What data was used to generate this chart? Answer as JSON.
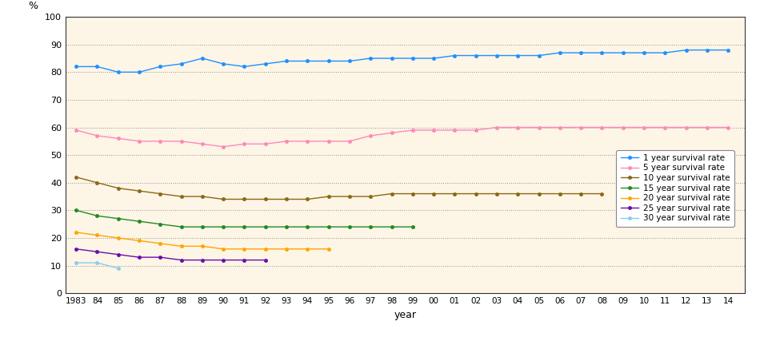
{
  "years": [
    1983,
    1984,
    1985,
    1986,
    1987,
    1988,
    1989,
    1990,
    1991,
    1992,
    1993,
    1994,
    1995,
    1996,
    1997,
    1998,
    1999,
    2000,
    2001,
    2002,
    2003,
    2004,
    2005,
    2006,
    2007,
    2008,
    2009,
    2010,
    2011,
    2012,
    2013,
    2014
  ],
  "year_labels": [
    "1983",
    "84",
    "85",
    "86",
    "87",
    "88",
    "89",
    "90",
    "91",
    "92",
    "93",
    "94",
    "95",
    "96",
    "97",
    "98",
    "99",
    "00",
    "01",
    "02",
    "03",
    "04",
    "05",
    "06",
    "07",
    "08",
    "09",
    "10",
    "11",
    "12",
    "13",
    "14"
  ],
  "series": [
    {
      "label": "1 year survival rate",
      "color": "#1e90ff",
      "data": [
        82,
        82,
        80,
        80,
        82,
        83,
        85,
        83,
        82,
        83,
        84,
        84,
        84,
        84,
        85,
        85,
        85,
        85,
        86,
        86,
        86,
        86,
        86,
        87,
        87,
        87,
        87,
        87,
        87,
        88,
        88,
        88
      ]
    },
    {
      "label": "5 year survival rate",
      "color": "#ff88bb",
      "data": [
        59,
        57,
        56,
        55,
        55,
        55,
        54,
        53,
        54,
        54,
        55,
        55,
        55,
        55,
        57,
        58,
        59,
        59,
        59,
        59,
        60,
        60,
        60,
        60,
        60,
        60,
        60,
        60,
        60,
        60,
        60,
        60
      ]
    },
    {
      "label": "10 year survival rate",
      "color": "#8b6914",
      "data": [
        42,
        40,
        38,
        37,
        36,
        35,
        35,
        34,
        34,
        34,
        34,
        34,
        35,
        35,
        35,
        36,
        36,
        36,
        36,
        36,
        36,
        36,
        36,
        36,
        36,
        36,
        null,
        null,
        null,
        null,
        null,
        null
      ]
    },
    {
      "label": "15 year survival rate",
      "color": "#228b22",
      "data": [
        30,
        28,
        27,
        26,
        25,
        24,
        24,
        24,
        24,
        24,
        24,
        24,
        24,
        24,
        24,
        24,
        24,
        null,
        null,
        null,
        null,
        null,
        null,
        null,
        null,
        null,
        null,
        null,
        null,
        null,
        null,
        null
      ]
    },
    {
      "label": "20 year survival rate",
      "color": "#ffa500",
      "data": [
        22,
        21,
        20,
        19,
        18,
        17,
        17,
        16,
        16,
        16,
        16,
        16,
        16,
        null,
        null,
        null,
        null,
        null,
        null,
        null,
        null,
        null,
        null,
        null,
        null,
        null,
        null,
        null,
        null,
        null,
        null,
        null
      ]
    },
    {
      "label": "25 year survival rate",
      "color": "#6a0dad",
      "data": [
        16,
        15,
        14,
        13,
        13,
        12,
        12,
        12,
        12,
        12,
        null,
        null,
        null,
        null,
        null,
        null,
        null,
        null,
        null,
        null,
        null,
        null,
        null,
        null,
        null,
        null,
        null,
        null,
        null,
        null,
        null,
        null
      ]
    },
    {
      "label": "30 year survival rate",
      "color": "#87ceeb",
      "data": [
        11,
        11,
        9,
        null,
        null,
        null,
        null,
        null,
        null,
        null,
        null,
        null,
        null,
        null,
        null,
        null,
        null,
        null,
        null,
        null,
        null,
        null,
        null,
        null,
        null,
        null,
        null,
        null,
        null,
        null,
        null,
        null
      ]
    }
  ],
  "ylim": [
    0,
    100
  ],
  "yticks": [
    0,
    10,
    20,
    30,
    40,
    50,
    60,
    70,
    80,
    90,
    100
  ],
  "background_color": "#fdf5e6",
  "fig_facecolor": "#ffffff",
  "grid_color": "#888888",
  "ylabel": "%",
  "xlabel": "year"
}
